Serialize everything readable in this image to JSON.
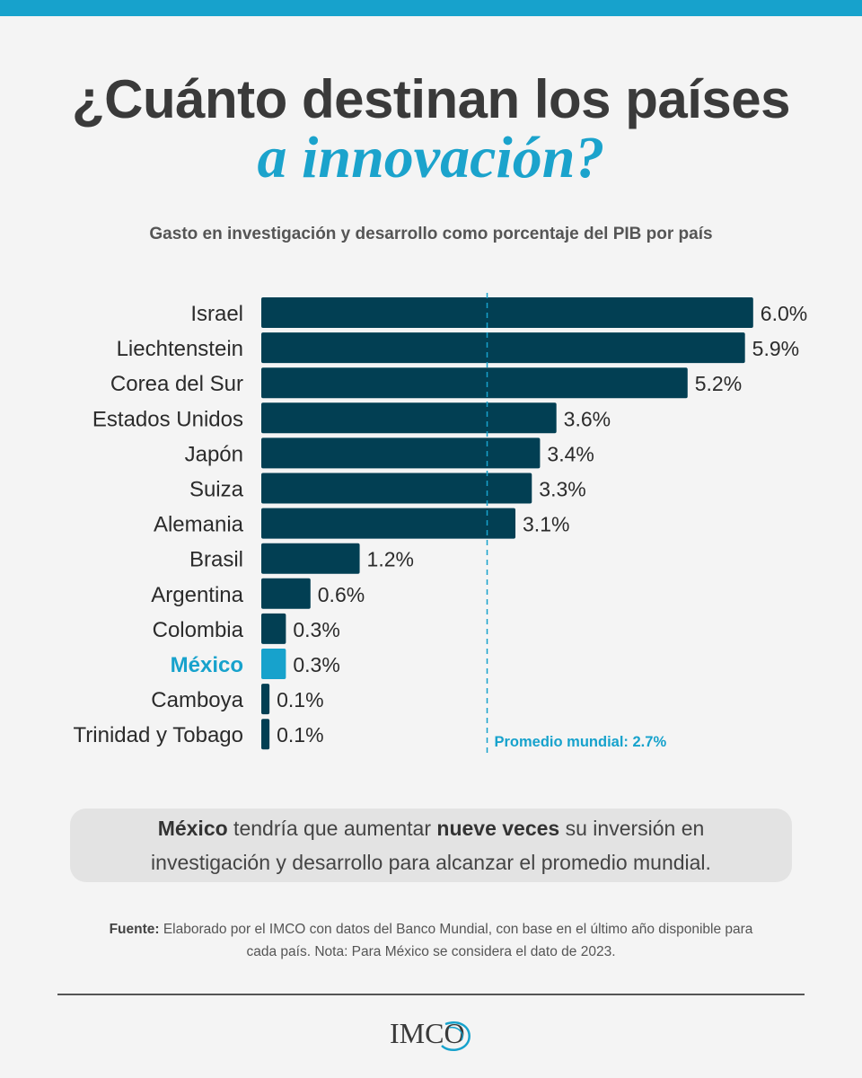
{
  "header": {
    "title_line1": "¿Cuánto destinan los países",
    "title_line2": "a innovación?",
    "subtitle": "Gasto en investigación y desarrollo como porcentaje del PIB por país"
  },
  "chart_data": {
    "type": "bar",
    "orientation": "horizontal",
    "categories": [
      "Israel",
      "Liechtenstein",
      "Corea del Sur",
      "Estados Unidos",
      "Japón",
      "Suiza",
      "Alemania",
      "Brasil",
      "Argentina",
      "Colombia",
      "México",
      "Camboya",
      "Trinidad y Tobago"
    ],
    "values": [
      6.0,
      5.9,
      5.2,
      3.6,
      3.4,
      3.3,
      3.1,
      1.2,
      0.6,
      0.3,
      0.3,
      0.1,
      0.1
    ],
    "value_labels": [
      "6.0%",
      "5.9%",
      "5.2%",
      "3.6%",
      "3.4%",
      "3.3%",
      "3.1%",
      "1.2%",
      "0.6%",
      "0.3%",
      "0.3%",
      "0.1%",
      "0.1%"
    ],
    "highlight": "México",
    "reference_line": {
      "value": 2.7,
      "label": "Promedio mundial: 2.7%"
    },
    "xlim": [
      0,
      6.0
    ],
    "colors": {
      "bar": "#023f53",
      "highlight": "#17a2cc",
      "reference": "#17a2cc"
    }
  },
  "callout": {
    "bold1": "México",
    "text1": " tendría que aumentar ",
    "bold2": "nueve veces",
    "text2": " su inversión en investigación y desarrollo para alcanzar el promedio mundial."
  },
  "source": {
    "label": "Fuente:",
    "text": " Elaborado por el IMCO con datos del Banco Mundial, con base en el último año disponible para cada país. Nota: Para México se considera el dato de 2023."
  },
  "logo": {
    "text": "IMCO"
  }
}
